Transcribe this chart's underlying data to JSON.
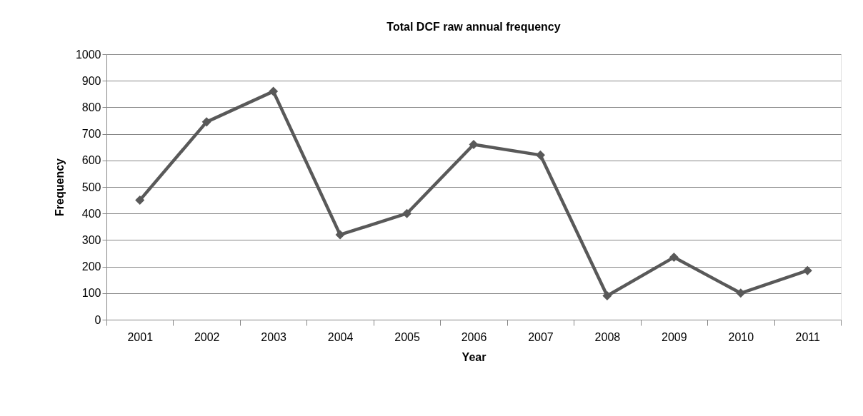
{
  "chart_data": {
    "type": "line",
    "title": "Total DCF raw annual frequency",
    "xlabel": "Year",
    "ylabel": "Frequency",
    "categories": [
      "2001",
      "2002",
      "2003",
      "2004",
      "2005",
      "2006",
      "2007",
      "2008",
      "2009",
      "2010",
      "2011"
    ],
    "series": [
      {
        "color": "#595959",
        "values": [
          450,
          745,
          860,
          320,
          400,
          660,
          620,
          90,
          235,
          100,
          185
        ]
      }
    ],
    "ylim": [
      0,
      1000
    ],
    "yticks": [
      0,
      100,
      200,
      300,
      400,
      500,
      600,
      700,
      800,
      900,
      1000
    ],
    "grid": "y",
    "marker": "diamond",
    "line_style": "solid"
  }
}
